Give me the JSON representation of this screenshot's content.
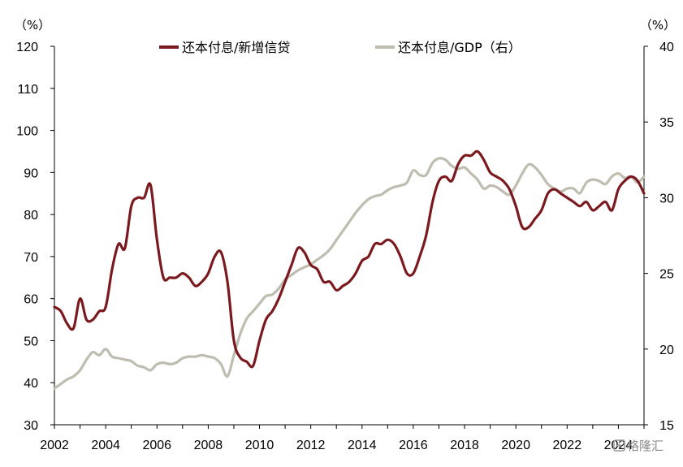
{
  "chart_data": {
    "type": "line",
    "left_axis": {
      "unit": "（%）",
      "min": 30,
      "max": 120,
      "ticks": [
        30,
        40,
        50,
        60,
        70,
        80,
        90,
        100,
        110,
        120
      ]
    },
    "right_axis": {
      "unit": "（%）",
      "min": 15,
      "max": 40,
      "ticks": [
        15,
        20,
        25,
        30,
        35,
        40
      ]
    },
    "x_axis": {
      "min": 2002,
      "max": 2025,
      "tick_labels": [
        "2002",
        "2004",
        "2006",
        "2008",
        "2010",
        "2012",
        "2014",
        "2016",
        "2018",
        "2020",
        "2022",
        "2024"
      ]
    },
    "grid": false,
    "legend_position": "top-center",
    "series": [
      {
        "name": "还本付息/新增信贷",
        "axis": "left",
        "color": "#7b1a1e",
        "points": [
          [
            2002.0,
            58
          ],
          [
            2002.25,
            57
          ],
          [
            2002.5,
            54
          ],
          [
            2002.75,
            53
          ],
          [
            2003.0,
            60
          ],
          [
            2003.25,
            55
          ],
          [
            2003.5,
            55
          ],
          [
            2003.75,
            57
          ],
          [
            2004.0,
            58
          ],
          [
            2004.25,
            67
          ],
          [
            2004.5,
            73
          ],
          [
            2004.75,
            72
          ],
          [
            2005.0,
            82
          ],
          [
            2005.25,
            84
          ],
          [
            2005.5,
            84
          ],
          [
            2005.75,
            87
          ],
          [
            2006.0,
            74
          ],
          [
            2006.25,
            65
          ],
          [
            2006.5,
            65
          ],
          [
            2006.75,
            65
          ],
          [
            2007.0,
            66
          ],
          [
            2007.25,
            65
          ],
          [
            2007.5,
            63
          ],
          [
            2007.75,
            64
          ],
          [
            2008.0,
            66
          ],
          [
            2008.25,
            70
          ],
          [
            2008.5,
            71
          ],
          [
            2008.75,
            64
          ],
          [
            2009.0,
            50
          ],
          [
            2009.25,
            46
          ],
          [
            2009.5,
            45
          ],
          [
            2009.75,
            44
          ],
          [
            2010.0,
            50
          ],
          [
            2010.25,
            55
          ],
          [
            2010.5,
            57
          ],
          [
            2010.75,
            60
          ],
          [
            2011.0,
            64
          ],
          [
            2011.25,
            68
          ],
          [
            2011.5,
            72
          ],
          [
            2011.75,
            71
          ],
          [
            2012.0,
            68
          ],
          [
            2012.25,
            67
          ],
          [
            2012.5,
            64
          ],
          [
            2012.75,
            64
          ],
          [
            2013.0,
            62
          ],
          [
            2013.25,
            63
          ],
          [
            2013.5,
            64
          ],
          [
            2013.75,
            66
          ],
          [
            2014.0,
            69
          ],
          [
            2014.25,
            70
          ],
          [
            2014.5,
            73
          ],
          [
            2014.75,
            73
          ],
          [
            2015.0,
            74
          ],
          [
            2015.25,
            73
          ],
          [
            2015.5,
            70
          ],
          [
            2015.75,
            66
          ],
          [
            2016.0,
            66
          ],
          [
            2016.25,
            70
          ],
          [
            2016.5,
            75
          ],
          [
            2016.75,
            83
          ],
          [
            2017.0,
            88
          ],
          [
            2017.25,
            89
          ],
          [
            2017.5,
            88
          ],
          [
            2017.75,
            92
          ],
          [
            2018.0,
            94
          ],
          [
            2018.25,
            94
          ],
          [
            2018.5,
            95
          ],
          [
            2018.75,
            93
          ],
          [
            2019.0,
            90
          ],
          [
            2019.25,
            89
          ],
          [
            2019.5,
            88
          ],
          [
            2019.75,
            86
          ],
          [
            2020.0,
            82
          ],
          [
            2020.25,
            77
          ],
          [
            2020.5,
            77
          ],
          [
            2020.75,
            79
          ],
          [
            2021.0,
            81
          ],
          [
            2021.25,
            85
          ],
          [
            2021.5,
            86
          ],
          [
            2021.75,
            85
          ],
          [
            2022.0,
            84
          ],
          [
            2022.25,
            83
          ],
          [
            2022.5,
            82
          ],
          [
            2022.75,
            83
          ],
          [
            2023.0,
            81
          ],
          [
            2023.25,
            82
          ],
          [
            2023.5,
            83
          ],
          [
            2023.75,
            81
          ],
          [
            2024.0,
            86
          ],
          [
            2024.25,
            88
          ],
          [
            2024.5,
            89
          ],
          [
            2024.75,
            88
          ],
          [
            2025.0,
            85
          ]
        ]
      },
      {
        "name": "还本付息/GDP（右）",
        "axis": "right",
        "color": "#bfbcb0",
        "points": [
          [
            2002.0,
            17.4
          ],
          [
            2002.25,
            17.7
          ],
          [
            2002.5,
            18.0
          ],
          [
            2002.75,
            18.2
          ],
          [
            2003.0,
            18.6
          ],
          [
            2003.25,
            19.3
          ],
          [
            2003.5,
            19.8
          ],
          [
            2003.75,
            19.6
          ],
          [
            2004.0,
            20.0
          ],
          [
            2004.25,
            19.5
          ],
          [
            2004.5,
            19.4
          ],
          [
            2004.75,
            19.3
          ],
          [
            2005.0,
            19.2
          ],
          [
            2005.25,
            18.9
          ],
          [
            2005.5,
            18.8
          ],
          [
            2005.75,
            18.6
          ],
          [
            2006.0,
            19.0
          ],
          [
            2006.25,
            19.1
          ],
          [
            2006.5,
            19.0
          ],
          [
            2006.75,
            19.1
          ],
          [
            2007.0,
            19.4
          ],
          [
            2007.25,
            19.5
          ],
          [
            2007.5,
            19.5
          ],
          [
            2007.75,
            19.6
          ],
          [
            2008.0,
            19.5
          ],
          [
            2008.25,
            19.4
          ],
          [
            2008.5,
            19.0
          ],
          [
            2008.75,
            18.2
          ],
          [
            2009.0,
            19.6
          ],
          [
            2009.25,
            21.0
          ],
          [
            2009.5,
            22.0
          ],
          [
            2009.75,
            22.5
          ],
          [
            2010.0,
            23.0
          ],
          [
            2010.25,
            23.5
          ],
          [
            2010.5,
            23.6
          ],
          [
            2010.75,
            24.0
          ],
          [
            2011.0,
            24.6
          ],
          [
            2011.25,
            24.9
          ],
          [
            2011.5,
            25.2
          ],
          [
            2011.75,
            25.4
          ],
          [
            2012.0,
            25.6
          ],
          [
            2012.25,
            25.9
          ],
          [
            2012.5,
            26.2
          ],
          [
            2012.75,
            26.6
          ],
          [
            2013.0,
            27.2
          ],
          [
            2013.25,
            27.8
          ],
          [
            2013.5,
            28.4
          ],
          [
            2013.75,
            29.0
          ],
          [
            2014.0,
            29.5
          ],
          [
            2014.25,
            29.9
          ],
          [
            2014.5,
            30.1
          ],
          [
            2014.75,
            30.2
          ],
          [
            2015.0,
            30.5
          ],
          [
            2015.25,
            30.7
          ],
          [
            2015.5,
            30.8
          ],
          [
            2015.75,
            31.0
          ],
          [
            2016.0,
            31.8
          ],
          [
            2016.25,
            31.5
          ],
          [
            2016.5,
            31.5
          ],
          [
            2016.75,
            32.3
          ],
          [
            2017.0,
            32.6
          ],
          [
            2017.25,
            32.5
          ],
          [
            2017.5,
            32.1
          ],
          [
            2017.75,
            31.9
          ],
          [
            2018.0,
            32.0
          ],
          [
            2018.25,
            31.6
          ],
          [
            2018.5,
            31.2
          ],
          [
            2018.75,
            30.6
          ],
          [
            2019.0,
            30.8
          ],
          [
            2019.25,
            30.7
          ],
          [
            2019.5,
            30.4
          ],
          [
            2019.75,
            30.2
          ],
          [
            2020.0,
            30.8
          ],
          [
            2020.25,
            31.6
          ],
          [
            2020.5,
            32.2
          ],
          [
            2020.75,
            32.0
          ],
          [
            2021.0,
            31.5
          ],
          [
            2021.25,
            30.9
          ],
          [
            2021.5,
            30.6
          ],
          [
            2021.75,
            30.4
          ],
          [
            2022.0,
            30.6
          ],
          [
            2022.25,
            30.6
          ],
          [
            2022.5,
            30.3
          ],
          [
            2022.75,
            31.0
          ],
          [
            2023.0,
            31.2
          ],
          [
            2023.25,
            31.1
          ],
          [
            2023.5,
            30.9
          ],
          [
            2023.75,
            31.4
          ],
          [
            2024.0,
            31.6
          ],
          [
            2024.25,
            31.3
          ],
          [
            2024.5,
            31.4
          ],
          [
            2024.75,
            31.0
          ],
          [
            2025.0,
            31.4
          ]
        ]
      }
    ]
  },
  "watermark": {
    "text": "格隆汇",
    "icon": "gelonghui-logo-icon"
  }
}
